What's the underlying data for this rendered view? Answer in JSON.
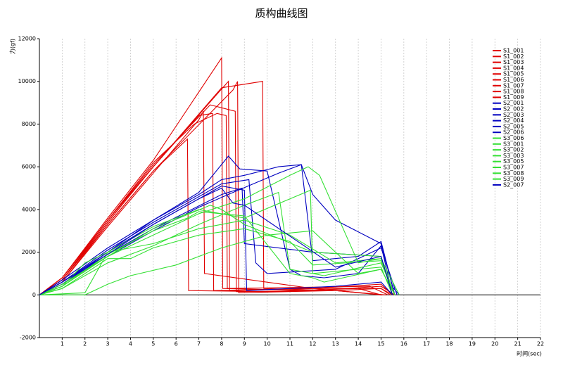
{
  "chart_data": {
    "type": "line",
    "title": "质构曲线图",
    "y_label": "力(gf)",
    "x_label": "时间(sec)",
    "xlim": [
      0,
      22
    ],
    "xticks": [
      1,
      2,
      3,
      4,
      5,
      6,
      7,
      8,
      9,
      10,
      11,
      12,
      13,
      14,
      15,
      16,
      17,
      18,
      19,
      20,
      21,
      22
    ],
    "ylim": [
      -2000,
      12000
    ],
    "yticks": [
      -2000,
      0,
      2000,
      4000,
      6000,
      8000,
      10000,
      12000
    ],
    "grid": true,
    "legend": "upper right",
    "series": [
      {
        "name": "S1_001",
        "color": "#e00000",
        "x": [
          0,
          1,
          3,
          5,
          8,
          8.05,
          12,
          15,
          15.6
        ],
        "values": [
          0,
          800,
          3600,
          6300,
          11100,
          300,
          200,
          400,
          0
        ]
      },
      {
        "name": "S1_002",
        "color": "#e00000",
        "x": [
          0,
          1,
          3,
          5,
          7.8,
          8.3,
          8.35,
          12,
          15,
          15.5
        ],
        "values": [
          0,
          700,
          3500,
          6000,
          9400,
          10000,
          200,
          300,
          300,
          0
        ]
      },
      {
        "name": "S1_003",
        "color": "#e00000",
        "x": [
          0,
          1,
          3,
          5,
          8.5,
          8.7,
          8.75,
          13,
          15,
          15.4
        ],
        "values": [
          0,
          600,
          3300,
          5800,
          9600,
          10000,
          100,
          200,
          300,
          0
        ]
      },
      {
        "name": "S1_004",
        "color": "#e00000",
        "x": [
          0,
          1,
          3,
          5,
          7,
          7.6,
          7.65,
          12,
          15,
          15.5
        ],
        "values": [
          0,
          700,
          3400,
          6000,
          8400,
          8500,
          200,
          300,
          500,
          0
        ]
      },
      {
        "name": "S1_005",
        "color": "#e00000",
        "x": [
          0,
          1,
          3,
          5,
          6.5,
          6.55,
          10,
          14,
          15
        ],
        "values": [
          0,
          700,
          3300,
          5800,
          7300,
          200,
          150,
          300,
          0
        ]
      },
      {
        "name": "S1_006",
        "color": "#e00000",
        "x": [
          0,
          1,
          3,
          5,
          7.5,
          8.6,
          8.65,
          13,
          15.2
        ],
        "values": [
          0,
          800,
          3500,
          6100,
          8900,
          8600,
          150,
          200,
          0
        ]
      },
      {
        "name": "S1_007",
        "color": "#e00000",
        "x": [
          0,
          1,
          3,
          5,
          7,
          7.2,
          7.25,
          12,
          15.1
        ],
        "values": [
          0,
          600,
          3200,
          5700,
          8200,
          8600,
          1000,
          300,
          0
        ]
      },
      {
        "name": "S1_008",
        "color": "#e00000",
        "x": [
          0,
          1,
          3,
          5,
          8,
          9.8,
          9.85,
          13,
          15
        ],
        "values": [
          0,
          700,
          3400,
          6000,
          9700,
          10000,
          300,
          200,
          0
        ]
      },
      {
        "name": "S1_009",
        "color": "#e00000",
        "x": [
          0,
          1,
          3,
          5,
          6.8,
          7.8,
          8.2,
          8.25,
          14.5,
          15.3
        ],
        "values": [
          0,
          800,
          3500,
          6200,
          8000,
          8500,
          8400,
          300,
          400,
          0
        ]
      },
      {
        "name": "S2_001",
        "color": "#0000c0",
        "x": [
          0,
          1,
          3,
          5,
          7,
          8.3,
          8.8,
          10,
          11,
          11.5,
          12.5,
          14,
          15,
          15.4,
          15.8
        ],
        "values": [
          0,
          700,
          2200,
          3500,
          4800,
          6500,
          5900,
          5800,
          1200,
          900,
          800,
          1000,
          2300,
          500,
          0
        ]
      },
      {
        "name": "S2_002",
        "color": "#0000c0",
        "x": [
          0,
          1,
          3,
          5,
          7,
          8,
          9,
          10.5,
          11.5,
          12,
          14,
          15,
          15.6
        ],
        "values": [
          0,
          500,
          2000,
          3500,
          4700,
          5400,
          5600,
          6000,
          6100,
          1600,
          1800,
          2500,
          0
        ]
      },
      {
        "name": "S2_003",
        "color": "#0000c0",
        "x": [
          0,
          1,
          3,
          5,
          8,
          9.2,
          9.5,
          10,
          13,
          15,
          15.7
        ],
        "values": [
          0,
          600,
          2100,
          3400,
          5200,
          5400,
          1500,
          1000,
          1200,
          2200,
          0
        ]
      },
      {
        "name": "S2_004",
        "color": "#0000c0",
        "x": [
          0,
          1,
          3,
          5,
          8,
          8.9,
          9,
          12,
          15,
          15.5
        ],
        "values": [
          0,
          500,
          1900,
          3100,
          4700,
          5000,
          2400,
          2000,
          1800,
          0
        ]
      },
      {
        "name": "S2_005",
        "color": "#0000c0",
        "x": [
          0,
          1,
          3,
          5,
          7,
          8,
          9,
          9.1,
          13,
          15,
          15.5
        ],
        "values": [
          0,
          600,
          2000,
          3300,
          4500,
          5100,
          4900,
          200,
          400,
          600,
          0
        ]
      },
      {
        "name": "S2_006",
        "color": "#0000c0",
        "x": [
          0,
          1,
          3,
          5,
          7,
          8.5,
          10.5,
          11.5,
          12,
          13,
          15,
          15.6
        ],
        "values": [
          0,
          500,
          1800,
          3000,
          4100,
          4800,
          5700,
          6100,
          4700,
          3500,
          2400,
          0
        ]
      },
      {
        "name": "S3_006",
        "color": "#33e033",
        "x": [
          0,
          1,
          3,
          5,
          7,
          9,
          11,
          11.8,
          12.3,
          14,
          15,
          15.8
        ],
        "values": [
          0,
          400,
          1800,
          2800,
          3800,
          4500,
          5600,
          6000,
          5600,
          1500,
          1700,
          0
        ]
      },
      {
        "name": "S3_001",
        "color": "#33e033",
        "x": [
          0,
          1,
          3,
          5,
          7,
          9,
          10.5,
          11,
          12.5,
          15,
          15.6
        ],
        "values": [
          0,
          300,
          1500,
          2300,
          3300,
          4200,
          4800,
          1200,
          900,
          1500,
          0
        ]
      },
      {
        "name": "S3_002",
        "color": "#33e033",
        "x": [
          0,
          1,
          3,
          5,
          6.5,
          7,
          9,
          11,
          12,
          12.5,
          15,
          15.6
        ],
        "values": [
          0,
          400,
          1900,
          3000,
          3600,
          3900,
          3700,
          1000,
          800,
          600,
          1200,
          0
        ]
      },
      {
        "name": "S3_003",
        "color": "#33e033",
        "x": [
          0,
          1,
          3,
          4,
          5,
          7,
          9,
          11,
          12,
          15,
          15.6
        ],
        "values": [
          0,
          300,
          1700,
          1700,
          2200,
          2800,
          3100,
          2500,
          1400,
          1600,
          0
        ]
      },
      {
        "name": "S3_005",
        "color": "#33e033",
        "x": [
          0,
          2,
          3,
          5,
          7,
          9,
          11,
          11.9,
          12,
          15,
          15.5
        ],
        "values": [
          0,
          100,
          2000,
          3200,
          4000,
          3600,
          4500,
          4900,
          1000,
          1300,
          0
        ]
      },
      {
        "name": "S3_007",
        "color": "#33e033",
        "x": [
          0,
          2,
          3,
          4,
          6,
          8,
          10,
          12,
          14,
          15,
          15.6
        ],
        "values": [
          0,
          0,
          500,
          900,
          1400,
          2200,
          2800,
          3000,
          1000,
          1200,
          0
        ]
      },
      {
        "name": "S3_008",
        "color": "#33e033",
        "x": [
          0,
          1,
          3,
          5,
          7.5,
          8,
          9,
          12,
          15,
          15.5
        ],
        "values": [
          0,
          500,
          1800,
          3100,
          4200,
          4000,
          3300,
          2000,
          1800,
          0
        ]
      },
      {
        "name": "S3_009",
        "color": "#33e033",
        "x": [
          0,
          1,
          2,
          3,
          5,
          7,
          9,
          11,
          13,
          15,
          15.6
        ],
        "values": [
          0,
          400,
          1500,
          2000,
          2400,
          3100,
          3500,
          2800,
          1500,
          1700,
          0
        ]
      },
      {
        "name": "S2_007",
        "color": "#0000c0",
        "x": [
          0,
          1,
          3,
          5,
          7,
          8,
          8.5,
          9,
          13,
          15,
          15.5
        ],
        "values": [
          0,
          600,
          1900,
          3300,
          4500,
          5000,
          4300,
          4200,
          1300,
          1800,
          0
        ]
      }
    ]
  }
}
